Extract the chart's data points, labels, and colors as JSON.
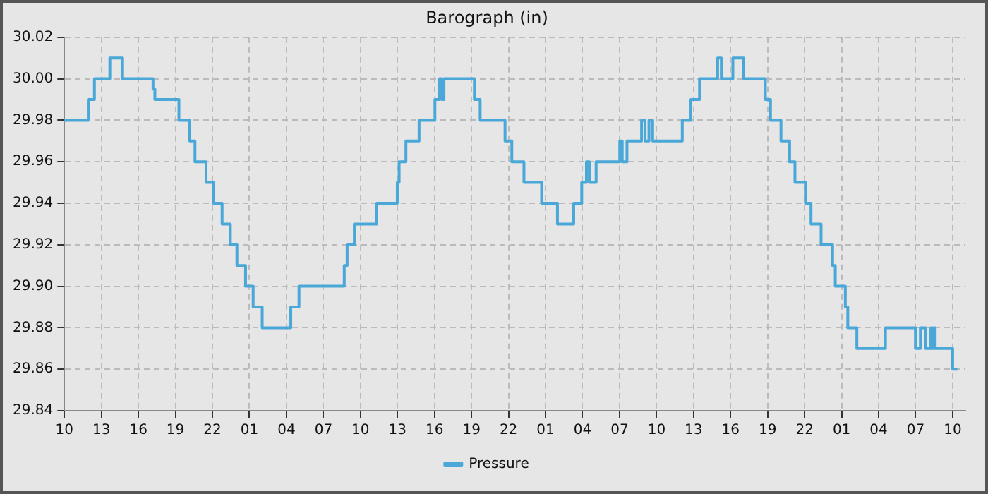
{
  "chart_data": {
    "type": "step",
    "title": "Barograph (in)",
    "legend": "bottom",
    "grid": true,
    "marker": "none",
    "line_style": "solid",
    "xlim": [
      "--01-01T10:00",
      "--01-04T11:02"
    ],
    "ylim": [
      29.84,
      30.02
    ],
    "yticks": [
      {
        "value": 29.84,
        "label": "29.84"
      },
      {
        "value": 29.86,
        "label": "29.86"
      },
      {
        "value": 29.88,
        "label": "29.88"
      },
      {
        "value": 29.9,
        "label": "29.90"
      },
      {
        "value": 29.92,
        "label": "29.92"
      },
      {
        "value": 29.94,
        "label": "29.94"
      },
      {
        "value": 29.96,
        "label": "29.96"
      },
      {
        "value": 29.98,
        "label": "29.98"
      },
      {
        "value": 30,
        "label": "30.00"
      },
      {
        "value": 30.02,
        "label": "30.02"
      }
    ],
    "xticks": [
      {
        "value": "--01-01T10:00",
        "label": "10"
      },
      {
        "value": "--01-01T13:00",
        "label": "13"
      },
      {
        "value": "--01-01T16:00",
        "label": "16"
      },
      {
        "value": "--01-01T19:00",
        "label": "19"
      },
      {
        "value": "--01-01T22:00",
        "label": "22"
      },
      {
        "value": "--01-02T01:00",
        "label": "01"
      },
      {
        "value": "--01-02T04:00",
        "label": "04"
      },
      {
        "value": "--01-02T07:00",
        "label": "07"
      },
      {
        "value": "--01-02T10:00",
        "label": "10"
      },
      {
        "value": "--01-02T13:00",
        "label": "13"
      },
      {
        "value": "--01-02T16:00",
        "label": "16"
      },
      {
        "value": "--01-02T19:00",
        "label": "19"
      },
      {
        "value": "--01-02T22:00",
        "label": "22"
      },
      {
        "value": "--01-03T01:00",
        "label": "01"
      },
      {
        "value": "--01-03T04:00",
        "label": "04"
      },
      {
        "value": "--01-03T07:00",
        "label": "07"
      },
      {
        "value": "--01-03T10:00",
        "label": "10"
      },
      {
        "value": "--01-03T13:00",
        "label": "13"
      },
      {
        "value": "--01-03T16:00",
        "label": "16"
      },
      {
        "value": "--01-03T19:00",
        "label": "19"
      },
      {
        "value": "--01-03T22:00",
        "label": "22"
      },
      {
        "value": "--01-04T01:00",
        "label": "01"
      },
      {
        "value": "--01-04T04:00",
        "label": "04"
      },
      {
        "value": "--01-04T07:00",
        "label": "07"
      },
      {
        "value": "--01-04T10:00",
        "label": "10"
      }
    ],
    "series": [
      {
        "name": "Pressure",
        "color": "#4aa8d8",
        "x": [
          "--01-01T10:00",
          "--01-01T11:56",
          "--01-01T12:26",
          "--01-01T13:41",
          "--01-01T14:43",
          "--01-01T17:11",
          "--01-01T17:20",
          "--01-01T19:17",
          "--01-01T20:10",
          "--01-01T20:35",
          "--01-01T21:29",
          "--01-01T22:05",
          "--01-01T22:47",
          "--01-01T23:27",
          "--01-01T23:59",
          "--01-02T00:41",
          "--01-02T01:18",
          "--01-02T02:02",
          "--01-02T04:21",
          "--01-02T05:01",
          "--01-02T08:41",
          "--01-02T08:55",
          "--01-02T09:30",
          "--01-02T11:19",
          "--01-02T12:59",
          "--01-02T13:08",
          "--01-02T13:41",
          "--01-02T14:45",
          "--01-02T16:02",
          "--01-02T16:25",
          "--01-02T16:36",
          "--01-02T16:46",
          "--01-02T16:59",
          "--01-02T19:14",
          "--01-02T19:42",
          "--01-02T21:43",
          "--01-02T22:16",
          "--01-02T23:15",
          "--01-03T00:41",
          "--01-03T01:58",
          "--01-03T03:17",
          "--01-03T03:56",
          "--01-03T04:19",
          "--01-03T04:33",
          "--01-03T05:06",
          "--01-03T07:01",
          "--01-03T07:13",
          "--01-03T07:36",
          "--01-03T08:47",
          "--01-03T09:04",
          "--01-03T09:23",
          "--01-03T09:41",
          "--01-03T10:07",
          "--01-03T12:05",
          "--01-03T12:47",
          "--01-03T13:29",
          "--01-03T14:57",
          "--01-03T15:15",
          "--01-03T16:11",
          "--01-03T17:04",
          "--01-03T18:49",
          "--01-03T19:14",
          "--01-03T20:05",
          "--01-03T20:47",
          "--01-03T21:13",
          "--01-03T22:04",
          "--01-03T22:31",
          "--01-03T23:20",
          "--01-04T00:16",
          "--01-04T00:29",
          "--01-04T01:18",
          "--01-04T01:30",
          "--01-04T02:14",
          "--01-04T04:33",
          "--01-04T06:59",
          "--01-04T07:23",
          "--01-04T07:48",
          "--01-04T08:14",
          "--01-04T08:20",
          "--01-04T08:28",
          "--01-04T08:35",
          "--01-04T10:00",
          "--01-04T10:23"
        ],
        "values": [
          29.98,
          29.99,
          30.0,
          30.01,
          30.0,
          29.995,
          29.99,
          29.98,
          29.97,
          29.96,
          29.95,
          29.94,
          29.93,
          29.92,
          29.91,
          29.9,
          29.89,
          29.88,
          29.89,
          29.9,
          29.91,
          29.92,
          29.93,
          29.94,
          29.95,
          29.96,
          29.97,
          29.98,
          29.99,
          30.0,
          29.99,
          30.0,
          30.0,
          29.99,
          29.98,
          29.97,
          29.96,
          29.95,
          29.94,
          29.93,
          29.94,
          29.95,
          29.96,
          29.95,
          29.96,
          29.97,
          29.96,
          29.97,
          29.98,
          29.97,
          29.98,
          29.97,
          29.97,
          29.98,
          29.99,
          30.0,
          30.01,
          30.0,
          30.01,
          30.0,
          29.99,
          29.98,
          29.97,
          29.96,
          29.95,
          29.94,
          29.93,
          29.92,
          29.91,
          29.9,
          29.89,
          29.88,
          29.87,
          29.88,
          29.87,
          29.88,
          29.87,
          29.88,
          29.87,
          29.88,
          29.87,
          29.86,
          29.86
        ]
      }
    ]
  }
}
